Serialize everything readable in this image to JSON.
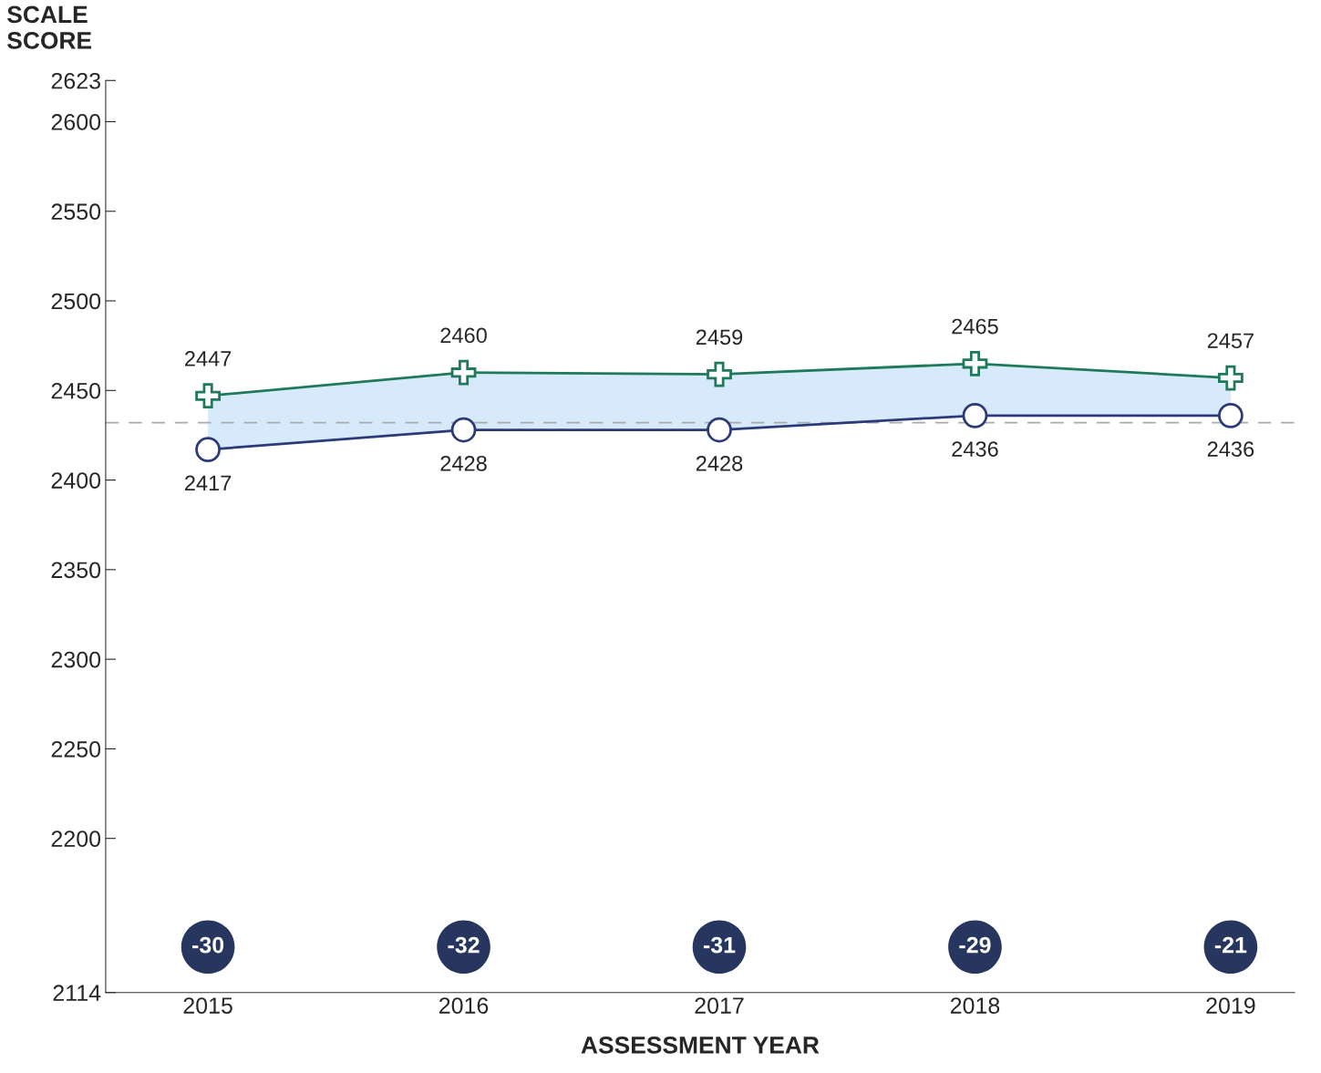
{
  "chart_data": {
    "type": "line",
    "xlabel": "ASSESSMENT YEAR",
    "ylabel": "SCALE SCORE",
    "categories": [
      "2015",
      "2016",
      "2017",
      "2018",
      "2019"
    ],
    "series": [
      {
        "color": "#1f7a5a",
        "marker": "cross",
        "values": [
          2447,
          2460,
          2459,
          2465,
          2457
        ],
        "lower": [
          2417,
          2428,
          2428,
          2436,
          2436
        ],
        "upper": [
          2447,
          2460,
          2459,
          2465,
          2457
        ]
      },
      {
        "color": "#2b3a78",
        "marker": "circle",
        "values": [
          2417,
          2428,
          2428,
          2436,
          2436
        ]
      }
    ],
    "data_labels": true,
    "ylim": [
      2114,
      2623
    ],
    "yticks": [
      2114,
      2200,
      2250,
      2300,
      2350,
      2400,
      2450,
      2500,
      2550,
      2600,
      2623
    ],
    "ref_lines": [
      {
        "axis": "y",
        "value": 2432,
        "color": "#aaaaaa",
        "line_style": "dashed"
      }
    ],
    "annotations": [
      "-30",
      "-32",
      "-31",
      "-29",
      "-21"
    ],
    "grid": false,
    "legend": false
  }
}
